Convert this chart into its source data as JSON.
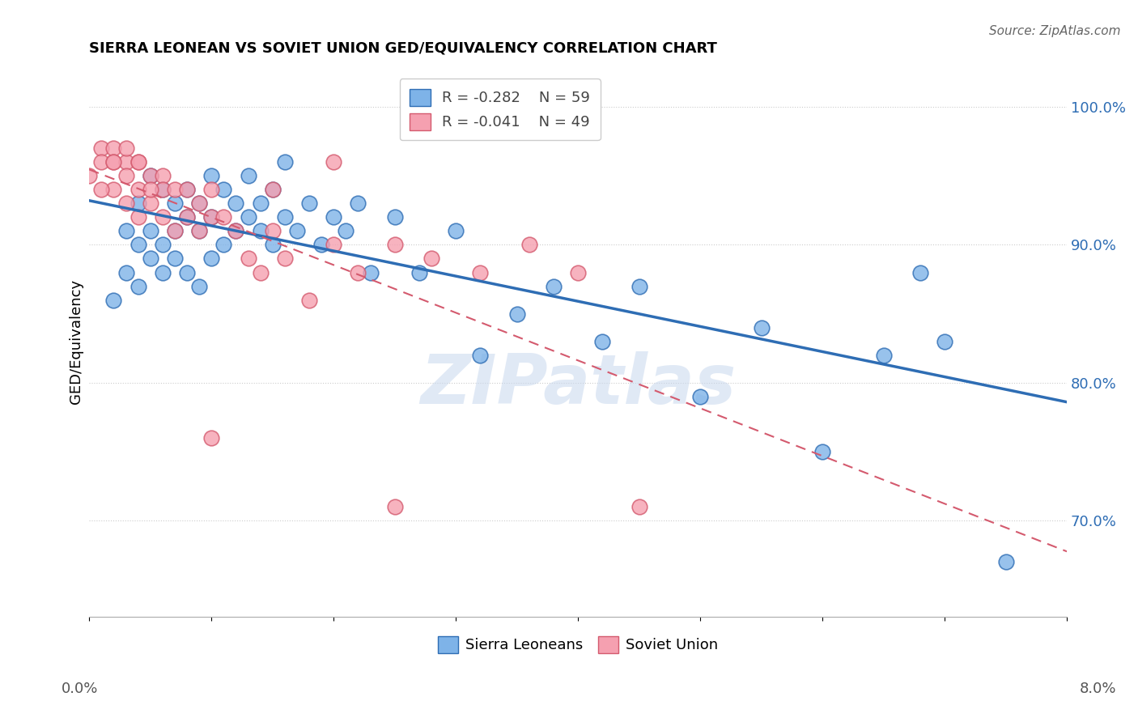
{
  "title": "SIERRA LEONEAN VS SOVIET UNION GED/EQUIVALENCY CORRELATION CHART",
  "source": "Source: ZipAtlas.com",
  "ylabel": "GED/Equivalency",
  "ylabel_ticks": [
    "100.0%",
    "90.0%",
    "80.0%",
    "70.0%"
  ],
  "ylabel_tick_values": [
    1.0,
    0.9,
    0.8,
    0.7
  ],
  "xlim": [
    0.0,
    0.08
  ],
  "ylim": [
    0.63,
    1.03
  ],
  "legend_blue_r": "R = -0.282",
  "legend_blue_n": "N = 59",
  "legend_pink_r": "R = -0.041",
  "legend_pink_n": "N = 49",
  "blue_color": "#7EB3E8",
  "pink_color": "#F5A0B0",
  "blue_line_color": "#2E6DB4",
  "pink_line_color": "#D45A6E",
  "grid_color": "#CCCCCC",
  "watermark": "ZIPatlas",
  "blue_points_x": [
    0.002,
    0.003,
    0.003,
    0.004,
    0.004,
    0.004,
    0.005,
    0.005,
    0.005,
    0.006,
    0.006,
    0.006,
    0.007,
    0.007,
    0.007,
    0.008,
    0.008,
    0.008,
    0.009,
    0.009,
    0.009,
    0.01,
    0.01,
    0.01,
    0.011,
    0.011,
    0.012,
    0.012,
    0.013,
    0.013,
    0.014,
    0.014,
    0.015,
    0.015,
    0.016,
    0.016,
    0.017,
    0.018,
    0.019,
    0.02,
    0.021,
    0.022,
    0.023,
    0.025,
    0.027,
    0.03,
    0.032,
    0.035,
    0.038,
    0.042,
    0.045,
    0.05,
    0.055,
    0.06,
    0.065,
    0.038,
    0.068,
    0.07,
    0.075
  ],
  "blue_points_y": [
    0.86,
    0.91,
    0.88,
    0.93,
    0.9,
    0.87,
    0.95,
    0.91,
    0.89,
    0.94,
    0.9,
    0.88,
    0.93,
    0.91,
    0.89,
    0.94,
    0.92,
    0.88,
    0.93,
    0.91,
    0.87,
    0.95,
    0.92,
    0.89,
    0.94,
    0.9,
    0.93,
    0.91,
    0.95,
    0.92,
    0.93,
    0.91,
    0.94,
    0.9,
    0.92,
    0.96,
    0.91,
    0.93,
    0.9,
    0.92,
    0.91,
    0.93,
    0.88,
    0.92,
    0.88,
    0.91,
    0.82,
    0.85,
    0.87,
    0.83,
    0.87,
    0.79,
    0.84,
    0.75,
    0.82,
    1.0,
    0.88,
    0.83,
    0.67
  ],
  "pink_points_x": [
    0.0,
    0.001,
    0.001,
    0.002,
    0.002,
    0.002,
    0.003,
    0.003,
    0.003,
    0.004,
    0.004,
    0.004,
    0.005,
    0.005,
    0.006,
    0.006,
    0.006,
    0.007,
    0.007,
    0.008,
    0.008,
    0.009,
    0.009,
    0.01,
    0.01,
    0.011,
    0.012,
    0.013,
    0.014,
    0.015,
    0.016,
    0.018,
    0.02,
    0.022,
    0.025,
    0.028,
    0.032,
    0.036,
    0.04,
    0.045,
    0.01,
    0.015,
    0.02,
    0.025,
    0.002,
    0.003,
    0.004,
    0.005,
    0.001
  ],
  "pink_points_y": [
    0.95,
    0.97,
    0.96,
    0.97,
    0.96,
    0.94,
    0.96,
    0.95,
    0.93,
    0.96,
    0.94,
    0.92,
    0.95,
    0.93,
    0.95,
    0.94,
    0.92,
    0.94,
    0.91,
    0.94,
    0.92,
    0.93,
    0.91,
    0.94,
    0.92,
    0.92,
    0.91,
    0.89,
    0.88,
    0.91,
    0.89,
    0.86,
    0.9,
    0.88,
    0.9,
    0.89,
    0.88,
    0.9,
    0.88,
    0.71,
    0.76,
    0.94,
    0.96,
    0.71,
    0.96,
    0.97,
    0.96,
    0.94,
    0.94
  ]
}
